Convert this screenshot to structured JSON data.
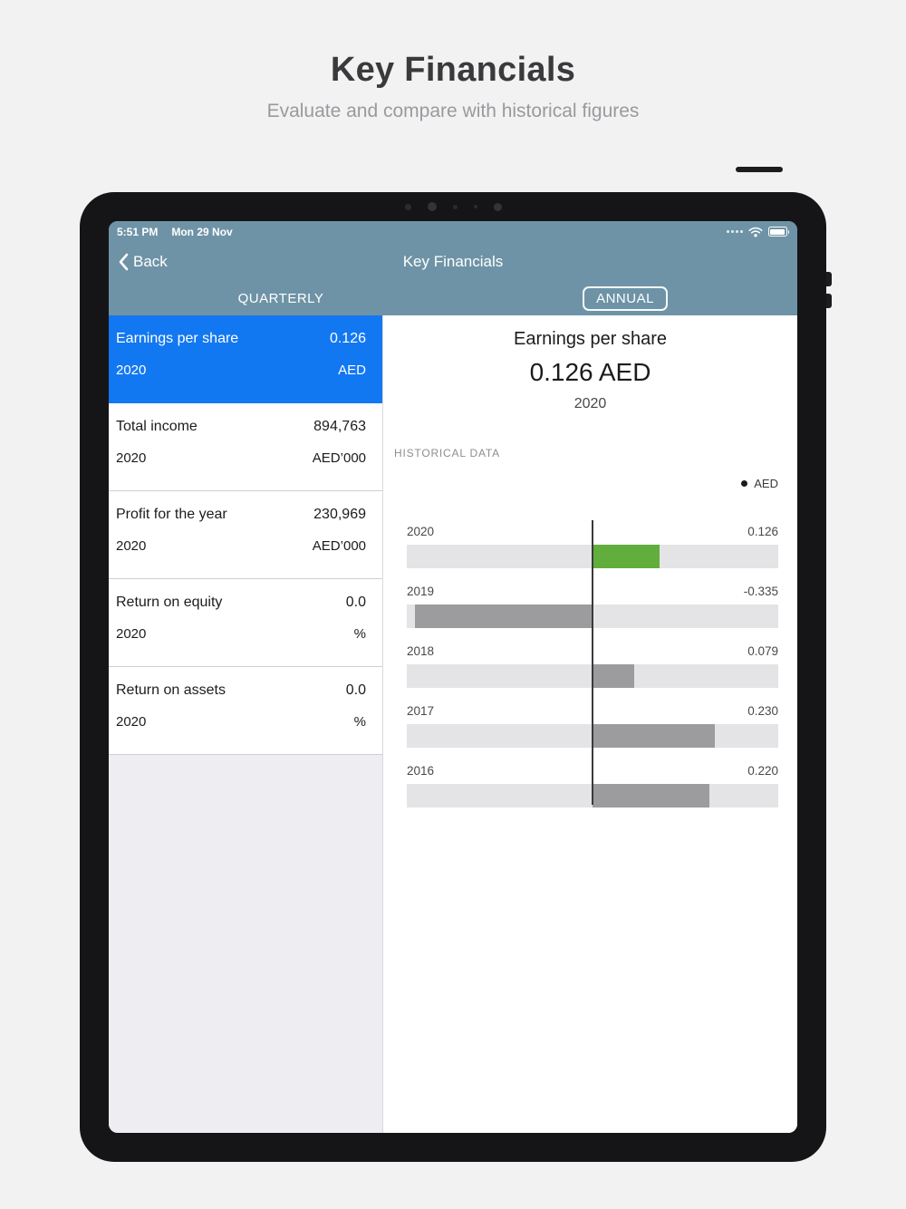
{
  "page": {
    "title": "Key Financials",
    "subtitle": "Evaluate and compare with historical figures"
  },
  "status_bar": {
    "time": "5:51 PM",
    "date": "Mon 29 Nov"
  },
  "nav": {
    "back_label": "Back",
    "title": "Key Financials"
  },
  "segments": {
    "quarterly_label": "QUARTERLY",
    "annual_label": "ANNUAL"
  },
  "sidebar": {
    "items": [
      {
        "label": "Earnings per share",
        "value": "0.126",
        "year": "2020",
        "unit": "AED",
        "selected": true
      },
      {
        "label": "Total income",
        "value": "894,763",
        "year": "2020",
        "unit": "AED’000",
        "selected": false
      },
      {
        "label": "Profit for the year",
        "value": "230,969",
        "year": "2020",
        "unit": "AED’000",
        "selected": false
      },
      {
        "label": "Return on equity",
        "value": "0.0",
        "year": "2020",
        "unit": "%",
        "selected": false
      },
      {
        "label": "Return on assets",
        "value": "0.0",
        "year": "2020",
        "unit": "%",
        "selected": false
      }
    ]
  },
  "detail": {
    "title": "Earnings per share",
    "value": "0.126 AED",
    "year": "2020",
    "section_label": "HISTORICAL DATA",
    "legend_label": "AED"
  },
  "chart_data": {
    "type": "bar",
    "orientation": "horizontal",
    "title": "Earnings per share – historical data (AED)",
    "categories": [
      "2020",
      "2019",
      "2018",
      "2017",
      "2016"
    ],
    "values": [
      0.126,
      -0.335,
      0.079,
      0.23,
      0.22
    ],
    "value_labels": [
      "0.126",
      "-0.335",
      "0.079",
      "0.230",
      "0.220"
    ],
    "xlim": [
      -0.35,
      0.35
    ],
    "axis_at": 0,
    "highlight_index": 0,
    "highlight_color": "#61ae3d",
    "bar_color": "#9c9c9e",
    "track_color": "#e4e4e6",
    "legend": [
      "AED"
    ]
  },
  "colors": {
    "header_slate": "#6e93a6",
    "selected_blue": "#1278f2",
    "positive_green": "#61ae3d",
    "bar_gray": "#9c9c9e",
    "track_gray": "#e4e4e6"
  }
}
